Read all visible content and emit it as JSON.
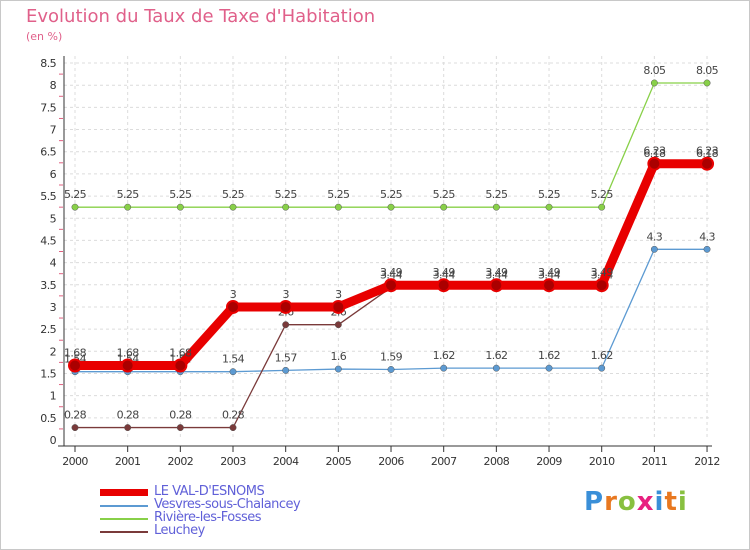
{
  "chart_data": {
    "type": "line",
    "title": "Evolution du Taux de Taxe d'Habitation",
    "subtitle": "(en %)",
    "categories": [
      "2000",
      "2001",
      "2002",
      "2003",
      "2004",
      "2005",
      "2006",
      "2007",
      "2008",
      "2009",
      "2010",
      "2011",
      "2012"
    ],
    "ylim": [
      0,
      8.5
    ],
    "yticks": [
      "0",
      "0.5",
      "1",
      "1.5",
      "2",
      "2.5",
      "3",
      "3.5",
      "4",
      "4.5",
      "5",
      "5.5",
      "6",
      "6.5",
      "7",
      "7.5",
      "8",
      "8.5"
    ],
    "series": [
      {
        "name": "Riviere-les-Fosses",
        "label": "Rivière-les-Fosses",
        "color": "#88d048",
        "values": [
          5.25,
          5.25,
          5.25,
          5.25,
          5.25,
          5.25,
          5.25,
          5.25,
          5.25,
          5.25,
          5.25,
          8.05,
          8.05
        ],
        "labels": [
          "5.25",
          "5.25",
          "5.25",
          "5.25",
          "5.25",
          "5.25",
          "5.25",
          "5.25",
          "5.25",
          "5.25",
          "5.25",
          "8.05",
          "8.05"
        ]
      },
      {
        "name": "Vesvres-sous-Chalancey",
        "label": "Vesvres-sous-Chalancey",
        "color": "#5c9ad2",
        "values": [
          1.54,
          1.54,
          1.54,
          1.54,
          1.57,
          1.6,
          1.59,
          1.62,
          1.62,
          1.62,
          1.62,
          4.3,
          4.3
        ],
        "labels": [
          "1.54",
          "1.54",
          "1.54",
          "1.54",
          "1.57",
          "1.6",
          "1.59",
          "1.62",
          "1.62",
          "1.62",
          "1.62",
          "4.3",
          "4.3"
        ]
      },
      {
        "name": "Leuchey",
        "label": "Leuchey",
        "color": "#7a3a3a",
        "values": [
          0.28,
          0.28,
          0.28,
          0.28,
          2.6,
          2.6,
          3.44,
          3.44,
          3.44,
          3.44,
          3.44,
          6.18,
          6.18
        ],
        "labels": [
          "0.28",
          "0.28",
          "0.28",
          "0.28",
          "2.6",
          "2.6",
          "3.44",
          "3.44",
          "3.44",
          "3.44",
          "3.44",
          "6.18",
          "6.18"
        ]
      },
      {
        "name": "LE VAL-D'ESNOMS",
        "label": "LE VAL-D'ESNOMS",
        "color": "#e80000",
        "values": [
          1.68,
          1.68,
          1.68,
          3,
          3,
          3,
          3.49,
          3.49,
          3.49,
          3.49,
          3.49,
          6.23,
          6.23
        ],
        "labels": [
          "1.68",
          "1.68",
          "1.68",
          "3",
          "3",
          "3",
          "3.49",
          "3.49",
          "3.49",
          "3.49",
          "3.49",
          "6.23",
          "6.23"
        ]
      }
    ],
    "legend_order": [
      "LE VAL-D'ESNOMS",
      "Vesvres-sous-Chalancey",
      "Riviere-les-Fosses",
      "Leuchey"
    ]
  },
  "logo": {
    "text": "Proxiti",
    "colors": [
      "#3a8fd8",
      "#e87820",
      "#88c040",
      "#e82080",
      "#3a8fd8",
      "#e87820",
      "#88c040"
    ]
  }
}
